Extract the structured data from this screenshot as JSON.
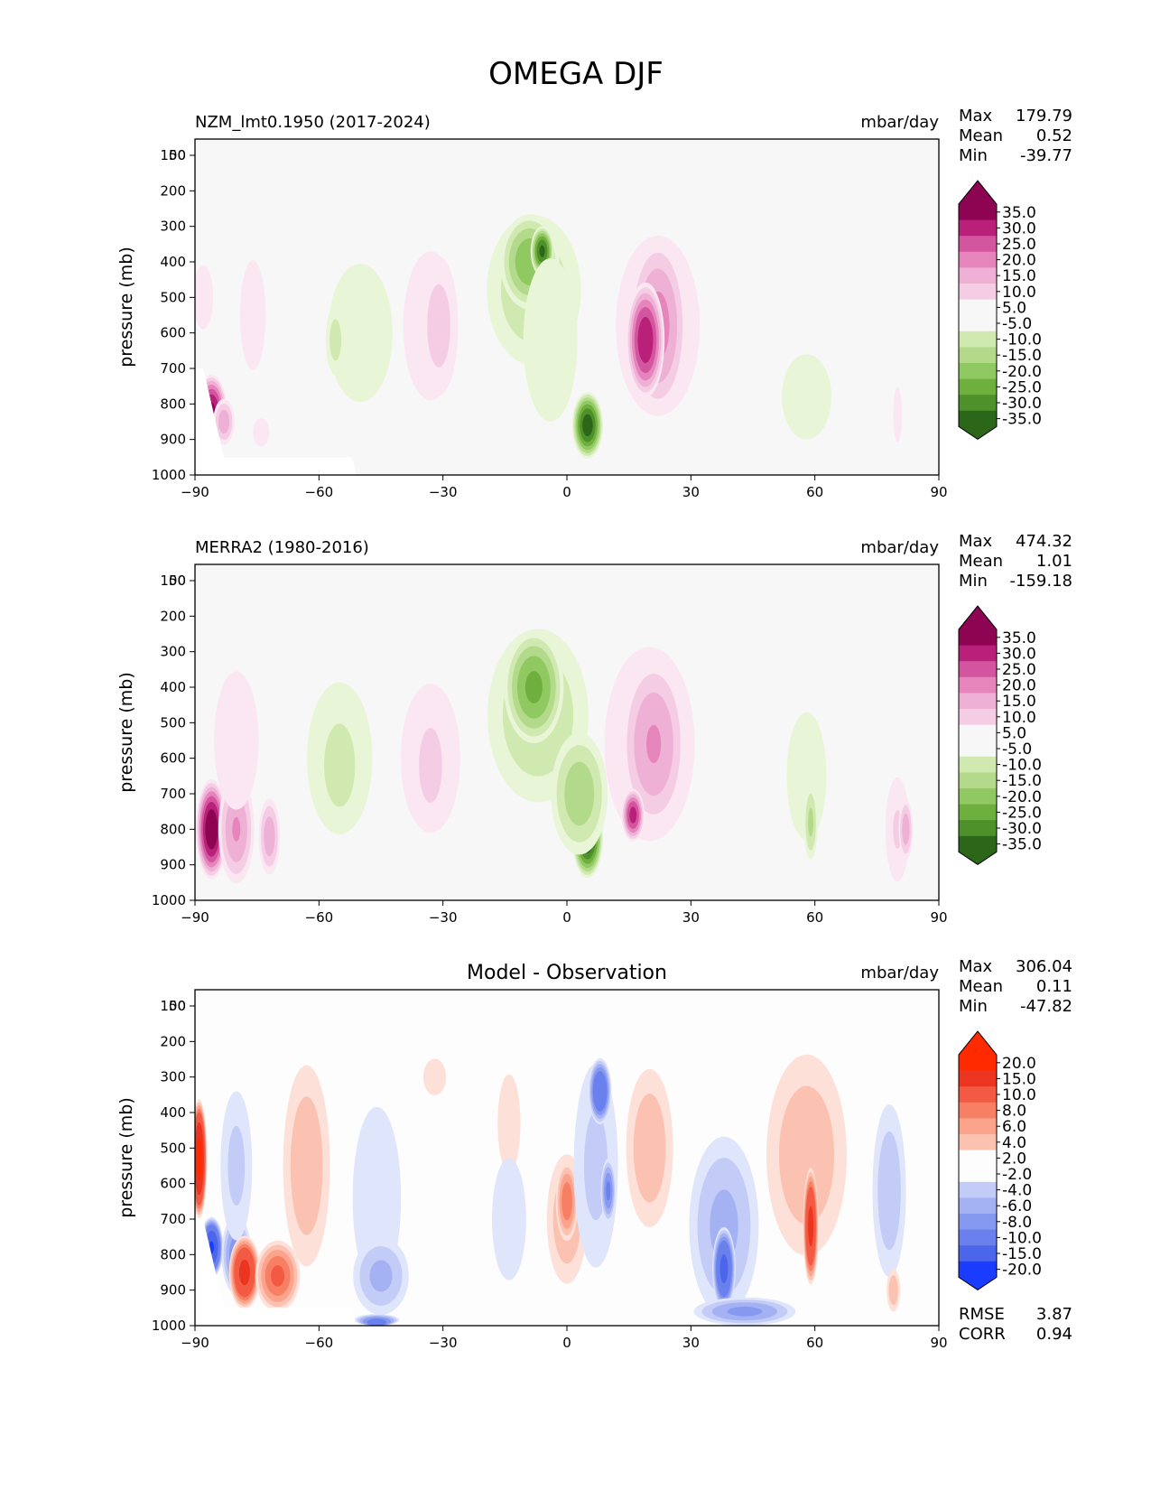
{
  "title": "OMEGA DJF",
  "colors": {
    "background": "#f7f7f7",
    "pos_scale": [
      "#fbe7f2",
      "#f4cde5",
      "#eeb1d5",
      "#e585bc",
      "#d4559f",
      "#b8207a",
      "#8c0452"
    ],
    "neg_scale": [
      "#e8f5d7",
      "#cfe9b0",
      "#b3da8a",
      "#90c862",
      "#6faf3e",
      "#4e902a",
      "#2c6619"
    ],
    "diff_pos": [
      "#fde0d8",
      "#fcc2b1",
      "#fba38b",
      "#f77f64",
      "#f25a43",
      "#ec3520",
      "#ff2a00"
    ],
    "diff_neg": [
      "#dfe5fb",
      "#c2ccf7",
      "#a4b2f4",
      "#8699f0",
      "#6a80ec",
      "#4b66ea",
      "#1a3cff"
    ]
  },
  "chart_data": [
    {
      "type": "heatmap",
      "title": "NZM_lmt0.1950 (2017-2024)",
      "units": "mbar/day",
      "ylabel": "pressure (mb)",
      "xlim": [
        -90,
        90
      ],
      "ylim": [
        1000,
        50
      ],
      "xticks": [
        -90,
        -60,
        -30,
        0,
        30,
        60,
        90
      ],
      "yticks": [
        50,
        100,
        200,
        300,
        400,
        500,
        600,
        700,
        800,
        900,
        1000
      ],
      "stats": {
        "max_label": "Max",
        "max": "179.79",
        "mean_label": "Mean",
        "mean": "0.52",
        "min_label": "Min",
        "min": "-39.77"
      },
      "colorbar": [
        "35.0",
        "30.0",
        "25.0",
        "20.0",
        "15.0",
        "10.0",
        "5.0",
        "-5.0",
        "-10.0",
        "-15.0",
        "-20.0",
        "-25.0",
        "-30.0",
        "-35.0"
      ],
      "features": [
        {
          "lat": -86,
          "lev": 820,
          "w": 4,
          "h": 220,
          "val": 36
        },
        {
          "lat": -83,
          "lev": 850,
          "w": 3,
          "h": 150,
          "val": 18
        },
        {
          "lat": -74,
          "lev": 880,
          "w": 3,
          "h": 120,
          "val": 8
        },
        {
          "lat": -76,
          "lev": 550,
          "w": 6,
          "h": 600,
          "val": 6
        },
        {
          "lat": -88,
          "lev": 500,
          "w": 4,
          "h": 300,
          "val": 7
        },
        {
          "lat": -50,
          "lev": 600,
          "w": 13,
          "h": 650,
          "val": -7
        },
        {
          "lat": -56,
          "lev": 620,
          "w": 3,
          "h": 250,
          "val": -12
        },
        {
          "lat": -33,
          "lev": 580,
          "w": 11,
          "h": 700,
          "val": 7
        },
        {
          "lat": -31,
          "lev": 580,
          "w": 6,
          "h": 500,
          "val": 12
        },
        {
          "lat": -8,
          "lev": 480,
          "w": 14,
          "h": 520,
          "val": -14
        },
        {
          "lat": -9,
          "lev": 400,
          "w": 8,
          "h": 300,
          "val": -24
        },
        {
          "lat": -6,
          "lev": 370,
          "w": 3,
          "h": 150,
          "val": -36
        },
        {
          "lat": -4,
          "lev": 620,
          "w": 10,
          "h": 700,
          "val": -8
        },
        {
          "lat": 5,
          "lev": 860,
          "w": 4,
          "h": 200,
          "val": -38
        },
        {
          "lat": 22,
          "lev": 580,
          "w": 13,
          "h": 650,
          "val": 12
        },
        {
          "lat": 22,
          "lev": 580,
          "w": 8,
          "h": 550,
          "val": 22
        },
        {
          "lat": 19,
          "lev": 620,
          "w": 5,
          "h": 350,
          "val": 34
        },
        {
          "lat": 58,
          "lev": 780,
          "w": 10,
          "h": 400,
          "val": -7
        },
        {
          "lat": 80,
          "lev": 830,
          "w": 2,
          "h": 300,
          "val": 6
        }
      ]
    },
    {
      "type": "heatmap",
      "title": "MERRA2 (1980-2016)",
      "units": "mbar/day",
      "ylabel": "pressure (mb)",
      "xlim": [
        -90,
        90
      ],
      "ylim": [
        1000,
        50
      ],
      "xticks": [
        -90,
        -60,
        -30,
        0,
        30,
        60,
        90
      ],
      "yticks": [
        50,
        100,
        200,
        300,
        400,
        500,
        600,
        700,
        800,
        900,
        1000
      ],
      "stats": {
        "max_label": "Max",
        "max": "474.32",
        "mean_label": "Mean",
        "mean": "1.01",
        "min_label": "Min",
        "min": "-159.18"
      },
      "colorbar": [
        "35.0",
        "30.0",
        "25.0",
        "20.0",
        "15.0",
        "10.0",
        "5.0",
        "-5.0",
        "-10.0",
        "-15.0",
        "-20.0",
        "-25.0",
        "-30.0",
        "-35.0"
      ],
      "features": [
        {
          "lat": -86,
          "lev": 800,
          "w": 4,
          "h": 300,
          "val": 40
        },
        {
          "lat": -80,
          "lev": 800,
          "w": 5,
          "h": 350,
          "val": 20
        },
        {
          "lat": -72,
          "lev": 820,
          "w": 3,
          "h": 250,
          "val": 18
        },
        {
          "lat": -80,
          "lev": 550,
          "w": 9,
          "h": 650,
          "val": 7
        },
        {
          "lat": -55,
          "lev": 600,
          "w": 12,
          "h": 650,
          "val": -8
        },
        {
          "lat": -55,
          "lev": 620,
          "w": 8,
          "h": 500,
          "val": -12
        },
        {
          "lat": -33,
          "lev": 600,
          "w": 12,
          "h": 700,
          "val": 7
        },
        {
          "lat": -33,
          "lev": 620,
          "w": 6,
          "h": 450,
          "val": 12
        },
        {
          "lat": -7,
          "lev": 480,
          "w": 15,
          "h": 600,
          "val": -14
        },
        {
          "lat": -8,
          "lev": 400,
          "w": 8,
          "h": 350,
          "val": -26
        },
        {
          "lat": 5,
          "lev": 820,
          "w": 4,
          "h": 250,
          "val": -40
        },
        {
          "lat": 3,
          "lev": 700,
          "w": 8,
          "h": 400,
          "val": -18
        },
        {
          "lat": 20,
          "lev": 560,
          "w": 14,
          "h": 700,
          "val": 12
        },
        {
          "lat": 21,
          "lev": 560,
          "w": 9,
          "h": 550,
          "val": 20
        },
        {
          "lat": 16,
          "lev": 760,
          "w": 3,
          "h": 160,
          "val": 32
        },
        {
          "lat": 58,
          "lev": 650,
          "w": 8,
          "h": 600,
          "val": -7
        },
        {
          "lat": 59,
          "lev": 780,
          "w": 2,
          "h": 250,
          "val": -16
        },
        {
          "lat": 80,
          "lev": 800,
          "w": 4,
          "h": 400,
          "val": 10
        },
        {
          "lat": 82,
          "lev": 800,
          "w": 2,
          "h": 200,
          "val": 18
        }
      ]
    },
    {
      "type": "heatmap",
      "title": "Model - Observation",
      "units": "mbar/day",
      "ylabel": "pressure (mb)",
      "xlim": [
        -90,
        90
      ],
      "ylim": [
        1000,
        50
      ],
      "xticks": [
        -90,
        -60,
        -30,
        0,
        30,
        60,
        90
      ],
      "yticks": [
        50,
        100,
        200,
        300,
        400,
        500,
        600,
        700,
        800,
        900,
        1000
      ],
      "stats": {
        "max_label": "Max",
        "max": "306.04",
        "mean_label": "Mean",
        "mean": "0.11",
        "min_label": "Min",
        "min": "-47.82"
      },
      "colorbar": [
        "20.0",
        "15.0",
        "10.0",
        "8.0",
        "6.0",
        "4.0",
        "2.0",
        "-2.0",
        "-4.0",
        "-6.0",
        "-8.0",
        "-10.0",
        "-15.0",
        "-20.0"
      ],
      "extra": {
        "rmse_label": "RMSE",
        "rmse": "3.87",
        "corr_label": "CORR",
        "corr": "0.94"
      },
      "features": [
        {
          "lat": -89,
          "lev": 530,
          "w": 2,
          "h": 350,
          "val": 22
        },
        {
          "lat": -86,
          "lev": 780,
          "w": 3,
          "h": 180,
          "val": -20
        },
        {
          "lat": -80,
          "lev": 800,
          "w": 4,
          "h": 250,
          "val": -9
        },
        {
          "lat": -78,
          "lev": 850,
          "w": 4,
          "h": 220,
          "val": 16
        },
        {
          "lat": -70,
          "lev": 860,
          "w": 6,
          "h": 220,
          "val": 10
        },
        {
          "lat": -80,
          "lev": 550,
          "w": 5,
          "h": 550,
          "val": -4
        },
        {
          "lat": -63,
          "lev": 550,
          "w": 7,
          "h": 700,
          "val": 5
        },
        {
          "lat": -46,
          "lev": 640,
          "w": 8,
          "h": 700,
          "val": -3.5
        },
        {
          "lat": -45,
          "lev": 860,
          "w": 8,
          "h": 260,
          "val": -6
        },
        {
          "lat": -46,
          "lev": 990,
          "w": 6,
          "h": 50,
          "val": -11
        },
        {
          "lat": -32,
          "lev": 300,
          "w": 4,
          "h": 150,
          "val": 3
        },
        {
          "lat": -14,
          "lev": 430,
          "w": 4,
          "h": 400,
          "val": 3
        },
        {
          "lat": -14,
          "lev": 700,
          "w": 6,
          "h": 500,
          "val": -3
        },
        {
          "lat": 0,
          "lev": 700,
          "w": 6,
          "h": 450,
          "val": 5
        },
        {
          "lat": 0,
          "lev": 650,
          "w": 3,
          "h": 250,
          "val": 9
        },
        {
          "lat": 7,
          "lev": 550,
          "w": 7,
          "h": 750,
          "val": -4
        },
        {
          "lat": 8,
          "lev": 340,
          "w": 3,
          "h": 200,
          "val": -14
        },
        {
          "lat": 10,
          "lev": 620,
          "w": 2,
          "h": 200,
          "val": -10
        },
        {
          "lat": 20,
          "lev": 500,
          "w": 7,
          "h": 550,
          "val": 5
        },
        {
          "lat": 38,
          "lev": 720,
          "w": 10,
          "h": 600,
          "val": -6
        },
        {
          "lat": 38,
          "lev": 840,
          "w": 3,
          "h": 250,
          "val": -16
        },
        {
          "lat": 43,
          "lev": 960,
          "w": 14,
          "h": 90,
          "val": -8
        },
        {
          "lat": 58,
          "lev": 520,
          "w": 12,
          "h": 700,
          "val": 5
        },
        {
          "lat": 59,
          "lev": 720,
          "w": 2,
          "h": 350,
          "val": 16
        },
        {
          "lat": 78,
          "lev": 620,
          "w": 5,
          "h": 600,
          "val": -5
        },
        {
          "lat": 79,
          "lev": 900,
          "w": 2,
          "h": 150,
          "val": 5
        }
      ]
    }
  ]
}
